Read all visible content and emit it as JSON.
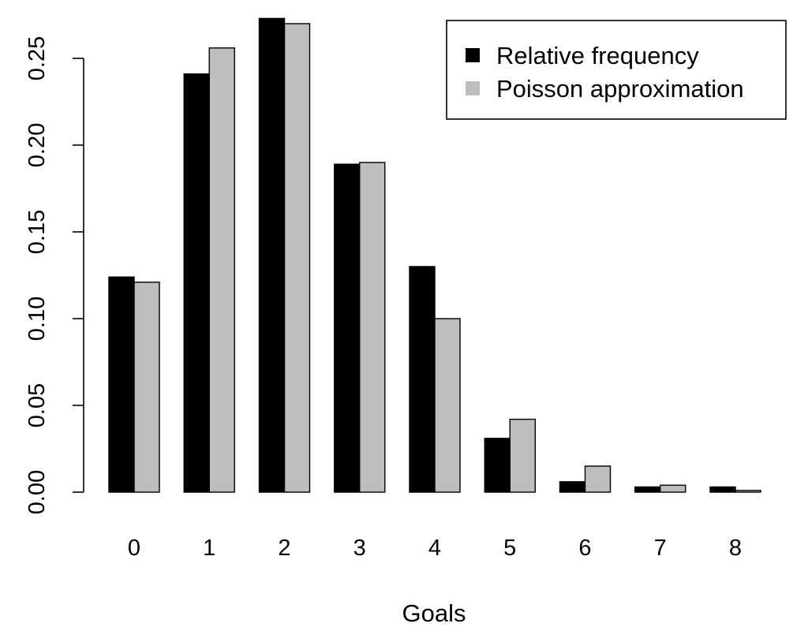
{
  "chart_data": {
    "type": "bar",
    "categories": [
      "0",
      "1",
      "2",
      "3",
      "4",
      "5",
      "6",
      "7",
      "8"
    ],
    "series": [
      {
        "name": "Relative frequency",
        "color": "#000000",
        "values": [
          0.124,
          0.241,
          0.273,
          0.189,
          0.13,
          0.031,
          0.006,
          0.003,
          0.003
        ]
      },
      {
        "name": "Poisson approximation",
        "color": "#bebebe",
        "values": [
          0.121,
          0.256,
          0.27,
          0.19,
          0.1,
          0.042,
          0.015,
          0.004,
          0.001
        ]
      }
    ],
    "title": "",
    "xlabel": "Goals",
    "ylabel": "",
    "ylim": [
      0,
      0.28
    ],
    "yticks": [
      "0.00",
      "0.05",
      "0.10",
      "0.15",
      "0.20",
      "0.25"
    ],
    "legend_position": "top-right",
    "grid": false
  }
}
